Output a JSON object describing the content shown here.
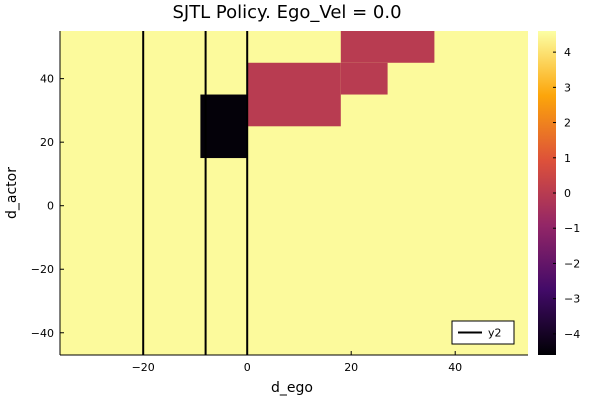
{
  "chart_data": {
    "type": "heatmap",
    "title": "SJTL Policy. Ego_Vel = 0.0",
    "xlabel": "d_ego",
    "ylabel": "d_actor",
    "xlim": [
      -36,
      54
    ],
    "ylim": [
      -47,
      55
    ],
    "x_ticks": [
      -20,
      0,
      20,
      40
    ],
    "y_ticks": [
      -40,
      -20,
      0,
      20,
      40
    ],
    "background_value": 4.5,
    "cells": [
      {
        "x0": -9,
        "x1": 0,
        "y0": 15,
        "y1": 35,
        "value": -4.5
      },
      {
        "x0": 0,
        "x1": 18,
        "y0": 25,
        "y1": 45,
        "value": 0
      },
      {
        "x0": 18,
        "x1": 27,
        "y0": 35,
        "y1": 45,
        "value": 0
      },
      {
        "x0": 18,
        "x1": 36,
        "y0": 45,
        "y1": 55,
        "value": 0
      }
    ],
    "vertical_lines": [
      -20,
      -8,
      0
    ],
    "legend": {
      "entries": [
        "y2"
      ],
      "placement": "bottom-right"
    },
    "colorbar": {
      "range": [
        -4.6,
        4.6
      ],
      "ticks": [
        -4,
        -3,
        -2,
        -1,
        0,
        1,
        2,
        3,
        4
      ],
      "stops": [
        "#000004",
        "#420a68",
        "#932667",
        "#dd513a",
        "#fca50a",
        "#fcffa4"
      ]
    },
    "grid": false
  }
}
